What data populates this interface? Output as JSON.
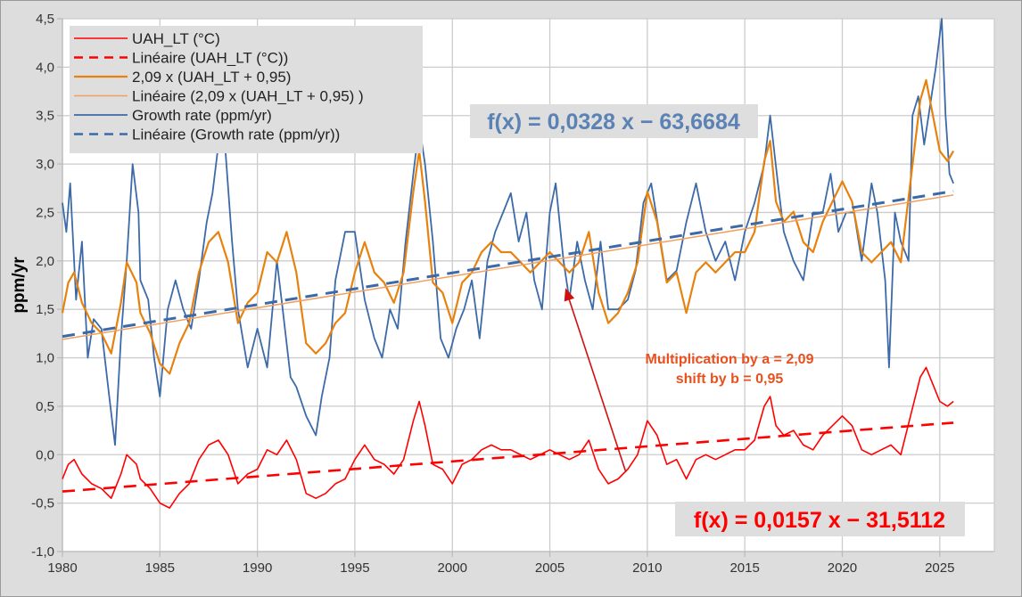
{
  "chart_data": {
    "type": "line",
    "title": "",
    "xlabel": "",
    "ylabel": "ppm/yr",
    "xlim": [
      1980,
      2027.8
    ],
    "ylim": [
      -1.0,
      4.5
    ],
    "grid": true,
    "legend_position": "top-left",
    "x_ticks": [
      "1980",
      "1985",
      "1990",
      "1995",
      "2000",
      "2005",
      "2010",
      "2015",
      "2020",
      "2025"
    ],
    "x_tick_values": [
      1980,
      1985,
      1990,
      1995,
      2000,
      2005,
      2010,
      2015,
      2020,
      2025
    ],
    "y_ticks": [
      "-1,0",
      "-0,5",
      "0,0",
      "0,5",
      "1,0",
      "1,5",
      "2,0",
      "2,5",
      "3,0",
      "3,5",
      "4,0",
      "4,5"
    ],
    "y_tick_values": [
      -1.0,
      -0.5,
      0.0,
      0.5,
      1.0,
      1.5,
      2.0,
      2.5,
      3.0,
      3.5,
      4.0,
      4.5
    ],
    "transform": {
      "a": 2.09,
      "b": 0.95
    },
    "series": [
      {
        "name": "UAH_LT (°C)",
        "color": "#ff0000",
        "style": "solid",
        "x": [
          1980.0,
          1980.3,
          1980.6,
          1981.0,
          1981.5,
          1982.0,
          1982.5,
          1983.0,
          1983.3,
          1983.8,
          1984.0,
          1984.5,
          1985.0,
          1985.5,
          1986.0,
          1986.5,
          1987.0,
          1987.5,
          1988.0,
          1988.5,
          1989.0,
          1989.5,
          1990.0,
          1990.5,
          1991.0,
          1991.5,
          1992.0,
          1992.5,
          1993.0,
          1993.5,
          1994.0,
          1994.5,
          1995.0,
          1995.5,
          1996.0,
          1996.5,
          1997.0,
          1997.5,
          1998.0,
          1998.3,
          1998.6,
          1999.0,
          1999.5,
          2000.0,
          2000.5,
          2001.0,
          2001.5,
          2002.0,
          2002.5,
          2003.0,
          2003.5,
          2004.0,
          2004.5,
          2005.0,
          2005.5,
          2006.0,
          2006.5,
          2007.0,
          2007.5,
          2008.0,
          2008.5,
          2009.0,
          2009.5,
          2010.0,
          2010.5,
          2011.0,
          2011.5,
          2012.0,
          2012.5,
          2013.0,
          2013.5,
          2014.0,
          2014.5,
          2015.0,
          2015.5,
          2016.0,
          2016.3,
          2016.6,
          2017.0,
          2017.5,
          2018.0,
          2018.5,
          2019.0,
          2019.5,
          2020.0,
          2020.5,
          2021.0,
          2021.5,
          2022.0,
          2022.5,
          2023.0,
          2023.5,
          2024.0,
          2024.3,
          2024.6,
          2025.0,
          2025.4,
          2025.7
        ],
        "values": [
          -0.25,
          -0.1,
          -0.05,
          -0.2,
          -0.3,
          -0.35,
          -0.45,
          -0.2,
          0.0,
          -0.1,
          -0.25,
          -0.35,
          -0.5,
          -0.55,
          -0.4,
          -0.3,
          -0.05,
          0.1,
          0.15,
          0.0,
          -0.3,
          -0.2,
          -0.15,
          0.05,
          0.0,
          0.15,
          -0.05,
          -0.4,
          -0.45,
          -0.4,
          -0.3,
          -0.25,
          -0.05,
          0.1,
          -0.05,
          -0.1,
          -0.2,
          -0.05,
          0.35,
          0.55,
          0.3,
          -0.1,
          -0.15,
          -0.3,
          -0.1,
          -0.05,
          0.05,
          0.1,
          0.05,
          0.05,
          0.0,
          -0.05,
          0.0,
          0.05,
          0.0,
          -0.05,
          0.0,
          0.15,
          -0.15,
          -0.3,
          -0.25,
          -0.15,
          0.0,
          0.35,
          0.2,
          -0.1,
          -0.05,
          -0.25,
          -0.05,
          0.0,
          -0.05,
          0.0,
          0.05,
          0.05,
          0.15,
          0.5,
          0.6,
          0.3,
          0.2,
          0.25,
          0.1,
          0.05,
          0.2,
          0.3,
          0.4,
          0.3,
          0.05,
          0.0,
          0.05,
          0.1,
          0.0,
          0.4,
          0.8,
          0.9,
          0.75,
          0.55,
          0.5,
          0.55
        ]
      },
      {
        "name": "Linéaire (UAH_LT (°C))",
        "color": "#ff0000",
        "style": "dashed",
        "x": [
          1980.0,
          2025.7
        ],
        "values": [
          -0.38,
          0.33
        ]
      },
      {
        "name": "2,09 x (UAH_LT + 0,95)",
        "color": "#e8820e",
        "style": "solid",
        "derived_from": "UAH_LT (°C)"
      },
      {
        "name": "Linéaire (2,09 x (UAH_LT + 0,95) )",
        "color": "#f0a060",
        "style": "solid-thin",
        "x": [
          1980.0,
          2025.7
        ],
        "values": [
          1.19,
          2.68
        ]
      },
      {
        "name": "Growth rate (ppm/yr)",
        "color": "#3c6aa8",
        "style": "solid",
        "x": [
          1980.0,
          1980.2,
          1980.4,
          1980.7,
          1981.0,
          1981.3,
          1981.6,
          1982.0,
          1982.4,
          1982.7,
          1983.0,
          1983.3,
          1983.6,
          1983.9,
          1984.0,
          1984.4,
          1984.7,
          1985.0,
          1985.4,
          1985.8,
          1986.2,
          1986.6,
          1987.0,
          1987.4,
          1987.7,
          1988.0,
          1988.3,
          1988.7,
          1989.0,
          1989.5,
          1990.0,
          1990.5,
          1991.0,
          1991.3,
          1991.7,
          1992.0,
          1992.5,
          1993.0,
          1993.3,
          1993.7,
          1994.0,
          1994.5,
          1995.0,
          1995.5,
          1996.0,
          1996.4,
          1996.8,
          1997.2,
          1997.6,
          1998.0,
          1998.3,
          1998.6,
          1999.0,
          1999.4,
          1999.8,
          2000.2,
          2000.6,
          2001.0,
          2001.4,
          2001.8,
          2002.2,
          2002.6,
          2003.0,
          2003.4,
          2003.8,
          2004.2,
          2004.6,
          2005.0,
          2005.3,
          2005.7,
          2006.0,
          2006.4,
          2006.8,
          2007.2,
          2007.6,
          2008.0,
          2008.5,
          2009.0,
          2009.4,
          2009.8,
          2010.2,
          2010.6,
          2011.0,
          2011.5,
          2012.0,
          2012.5,
          2013.0,
          2013.5,
          2014.0,
          2014.5,
          2015.0,
          2015.5,
          2016.0,
          2016.3,
          2016.7,
          2017.0,
          2017.5,
          2018.0,
          2018.5,
          2019.0,
          2019.4,
          2019.8,
          2020.2,
          2020.6,
          2021.0,
          2021.5,
          2021.8,
          2022.2,
          2022.4,
          2022.7,
          2023.0,
          2023.4,
          2023.6,
          2023.9,
          2024.2,
          2024.5,
          2024.8,
          2025.1,
          2025.3,
          2025.5,
          2025.7
        ],
        "values": [
          2.6,
          2.3,
          2.8,
          1.6,
          2.2,
          1.0,
          1.4,
          1.3,
          0.6,
          0.1,
          1.2,
          2.0,
          3.0,
          2.5,
          1.8,
          1.6,
          1.0,
          0.6,
          1.5,
          1.8,
          1.5,
          1.3,
          1.8,
          2.4,
          2.7,
          3.2,
          3.3,
          2.2,
          1.5,
          0.9,
          1.3,
          0.9,
          2.0,
          1.5,
          0.8,
          0.7,
          0.4,
          0.2,
          0.6,
          1.0,
          1.8,
          2.3,
          2.3,
          1.6,
          1.2,
          1.0,
          1.5,
          1.3,
          2.2,
          2.9,
          3.4,
          3.0,
          2.2,
          1.2,
          1.0,
          1.3,
          1.5,
          1.8,
          1.2,
          2.0,
          2.3,
          2.5,
          2.7,
          2.2,
          2.5,
          1.8,
          1.5,
          2.5,
          2.8,
          2.0,
          1.6,
          2.2,
          1.8,
          1.5,
          2.2,
          1.5,
          1.5,
          1.6,
          1.9,
          2.6,
          2.8,
          2.3,
          1.8,
          1.9,
          2.4,
          2.8,
          2.3,
          2.0,
          2.2,
          1.8,
          2.3,
          2.6,
          3.0,
          3.5,
          2.8,
          2.3,
          2.0,
          1.8,
          2.5,
          2.5,
          2.9,
          2.3,
          2.5,
          2.5,
          2.0,
          2.8,
          2.5,
          1.8,
          0.9,
          2.5,
          2.2,
          2.0,
          3.5,
          3.7,
          3.2,
          3.6,
          4.0,
          4.5,
          3.5,
          2.9,
          2.8
        ]
      },
      {
        "name": "Linéaire (Growth rate (ppm/yr))",
        "color": "#3c6aa8",
        "style": "dashed",
        "x": [
          1980.0,
          2025.7
        ],
        "values": [
          1.22,
          2.72
        ]
      }
    ],
    "annotations": [
      {
        "text": "f(x) = 0,0328 x − 63,6684",
        "color": "#5b82b5",
        "refers_to": "Linéaire (Growth rate (ppm/yr))"
      },
      {
        "text": "f(x) = 0,0157 x − 31,5112",
        "color": "#ff0000",
        "refers_to": "Linéaire (UAH_LT (°C))"
      },
      {
        "text_line1": "Multiplication by a = 2,09",
        "text_line2": "shift by b = 0,95",
        "color": "#e8501e",
        "arrow_from": [
          2008.9,
          -0.18
        ],
        "arrow_to": [
          2005.8,
          1.72
        ]
      }
    ]
  }
}
